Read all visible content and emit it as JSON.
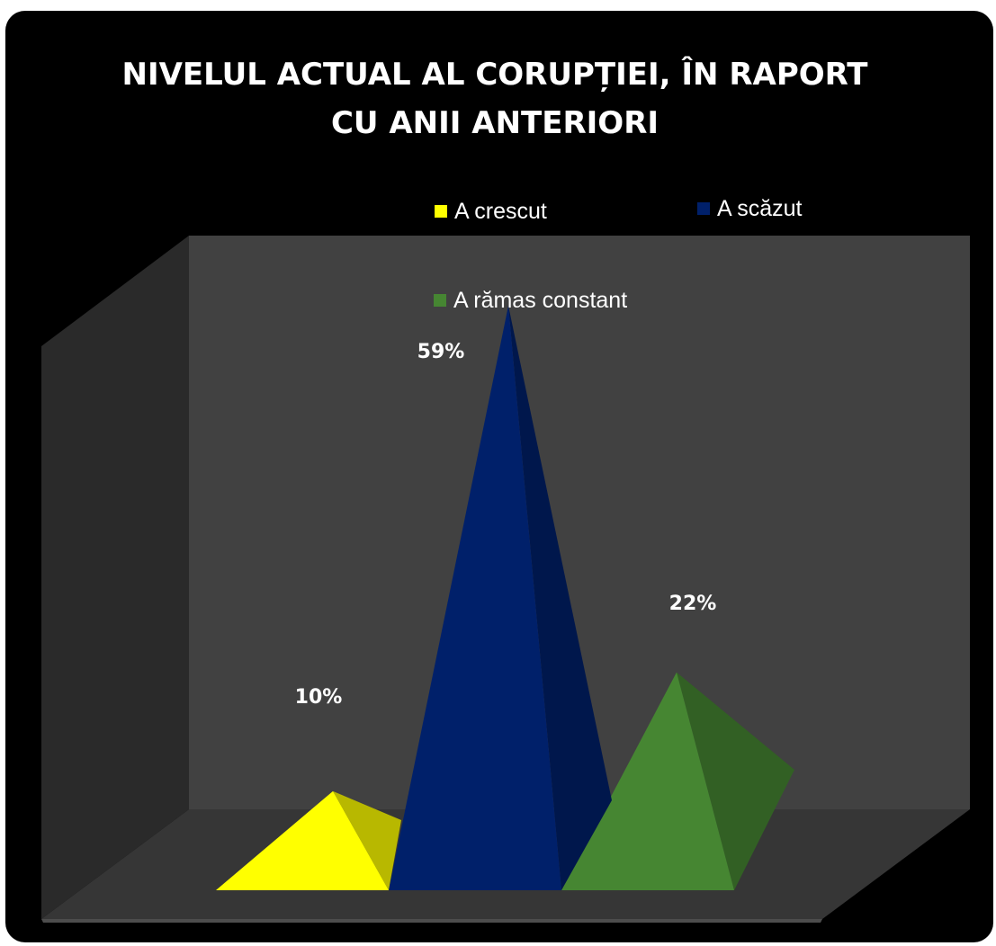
{
  "title": "NIVELUL ACTUAL AL CORUPȚIEI, ÎN RAPORT\nCU ANII ANTERIORI",
  "chart_data": {
    "type": "bar",
    "style": "3d-pyramid",
    "title": "NIVELUL ACTUAL AL CORUPȚIEI, ÎN RAPORT CU ANII ANTERIORI",
    "categories": [
      "A crescut",
      "A scăzut",
      "A rămas constant"
    ],
    "values": [
      10,
      59,
      22
    ],
    "data_labels": [
      "10%",
      "59%",
      "22%"
    ],
    "unit": "%",
    "ylim": [
      0,
      59
    ],
    "grid": false,
    "legend_position": "top",
    "colors": [
      "#ffff00",
      "#00206a",
      "#468632"
    ]
  }
}
